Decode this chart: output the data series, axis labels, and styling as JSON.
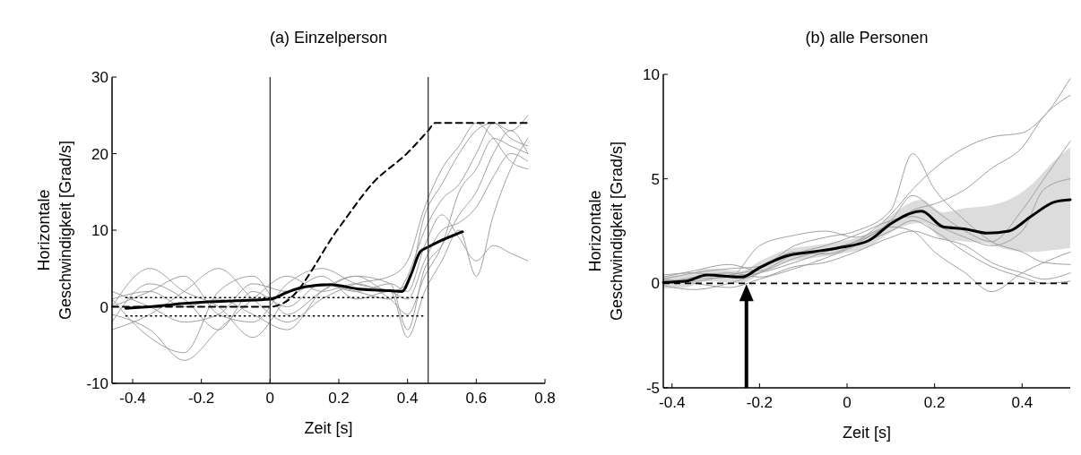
{
  "chart_data": [
    {
      "type": "line",
      "title": "(a) Einzelperson",
      "xlabel": "Zeit [s]",
      "ylabel": "Horizontale\nGeschwindigkeit [Grad/s]",
      "xlim": [
        -0.46,
        0.8
      ],
      "ylim": [
        -10,
        30
      ],
      "xticks": [
        -0.4,
        -0.2,
        0,
        0.2,
        0.4,
        0.6,
        0.8
      ],
      "yticks": [
        -10,
        0,
        10,
        20,
        30
      ],
      "ref_lines": [
        {
          "axis": "x",
          "value": 0,
          "color": "#333333",
          "line_style": "solid"
        },
        {
          "axis": "x",
          "value": 0.46,
          "color": "#333333",
          "line_style": "solid"
        }
      ],
      "series": [
        {
          "color": "#a0a0a0",
          "line_style": "solid",
          "x": [
            -0.46,
            -0.35,
            -0.25,
            -0.15,
            -0.05,
            0.05,
            0.15,
            0.25,
            0.35,
            0.4,
            0.45,
            0.5,
            0.55,
            0.6,
            0.65,
            0.7,
            0.75
          ],
          "values": [
            -2,
            3,
            1,
            -3,
            2,
            0,
            3,
            2,
            1,
            4,
            10,
            14,
            16,
            20,
            24,
            22,
            21
          ]
        },
        {
          "color": "#a0a0a0",
          "line_style": "solid",
          "x": [
            -0.46,
            -0.35,
            -0.25,
            -0.15,
            -0.05,
            0.05,
            0.15,
            0.25,
            0.35,
            0.4,
            0.45,
            0.5,
            0.55,
            0.6,
            0.65,
            0.7,
            0.75
          ],
          "values": [
            1,
            -4,
            -6,
            2,
            4,
            -1,
            2,
            4,
            3,
            -3,
            5,
            8,
            12,
            15,
            20,
            23,
            20
          ]
        },
        {
          "color": "#a0a0a0",
          "line_style": "solid",
          "x": [
            -0.46,
            -0.35,
            -0.25,
            -0.15,
            -0.05,
            0.05,
            0.15,
            0.25,
            0.35,
            0.4,
            0.45,
            0.5,
            0.55,
            0.6,
            0.65,
            0.7,
            0.75
          ],
          "values": [
            0,
            2,
            4,
            -1,
            -2,
            3,
            5,
            3,
            2,
            1,
            6,
            10,
            11,
            13,
            17,
            20,
            19
          ]
        },
        {
          "color": "#a0a0a0",
          "line_style": "solid",
          "x": [
            -0.46,
            -0.35,
            -0.25,
            -0.15,
            -0.05,
            0.05,
            0.15,
            0.25,
            0.35,
            0.4,
            0.45,
            0.5,
            0.55,
            0.6,
            0.65,
            0.7,
            0.75
          ],
          "values": [
            -3,
            -1,
            2,
            5,
            1,
            -2,
            1,
            3,
            4,
            6,
            13,
            18,
            21,
            24,
            22,
            19,
            18
          ]
        },
        {
          "color": "#a0a0a0",
          "line_style": "solid",
          "x": [
            -0.46,
            -0.35,
            -0.25,
            -0.15,
            -0.05,
            0.05,
            0.15,
            0.25,
            0.35,
            0.4,
            0.45,
            0.5,
            0.55,
            0.6,
            0.65,
            0.7,
            0.75
          ],
          "values": [
            2,
            0,
            -2,
            -1,
            3,
            2,
            4,
            1,
            2,
            -4,
            2,
            6,
            10,
            4,
            12,
            18,
            22
          ]
        },
        {
          "color": "#a0a0a0",
          "line_style": "solid",
          "x": [
            -0.46,
            -0.35,
            -0.25,
            -0.15,
            -0.05,
            0.05,
            0.15,
            0.25,
            0.35,
            0.4,
            0.45,
            0.5,
            0.55,
            0.6,
            0.65,
            0.7,
            0.75
          ],
          "values": [
            0,
            5,
            2,
            0,
            -4,
            1,
            3,
            2,
            3,
            2,
            8,
            12,
            9,
            6,
            8,
            7,
            6
          ]
        },
        {
          "color": "#a0a0a0",
          "line_style": "solid",
          "x": [
            -0.46,
            -0.35,
            -0.25,
            -0.15,
            -0.05,
            0.05,
            0.15,
            0.25,
            0.35,
            0.4,
            0.45,
            0.5,
            0.55,
            0.6,
            0.65,
            0.7,
            0.75
          ],
          "values": [
            -1,
            -3,
            -7,
            -3,
            1,
            4,
            2,
            3,
            1,
            -1,
            4,
            8,
            15,
            18,
            22,
            21,
            20
          ]
        },
        {
          "color": "#a0a0a0",
          "line_style": "solid",
          "x": [
            -0.46,
            -0.35,
            -0.25,
            -0.15,
            -0.05,
            0.05,
            0.15,
            0.25,
            0.35,
            0.4,
            0.45,
            0.5,
            0.55,
            0.6,
            0.65,
            0.7,
            0.75
          ],
          "values": [
            1,
            2,
            0,
            1,
            -1,
            -3,
            2,
            4,
            2,
            3,
            12,
            16,
            20,
            23,
            24,
            23,
            25
          ]
        },
        {
          "color": "#000000",
          "line_style": "dotted",
          "x": [
            -0.42,
            0.45
          ],
          "values": [
            1.2,
            1.2
          ]
        },
        {
          "color": "#000000",
          "line_style": "dotted",
          "x": [
            -0.42,
            0.45
          ],
          "values": [
            -1.2,
            -1.2
          ]
        },
        {
          "color": "#000000",
          "line_style": "dashed",
          "x": [
            -0.46,
            0,
            0.04,
            0.2,
            0.3,
            0.4,
            0.46,
            0.48,
            0.75
          ],
          "values": [
            0,
            0,
            0.5,
            10.3,
            16.2,
            20.1,
            23,
            24,
            24
          ]
        },
        {
          "color": "#000000",
          "line_style": "solid",
          "x": [
            -0.42,
            -0.3,
            -0.26,
            -0.1,
            0,
            0.05,
            0.1,
            0.175,
            0.26,
            0.35,
            0.384,
            0.41,
            0.437,
            0.46,
            0.5,
            0.56
          ],
          "values": [
            -0.2,
            0.2,
            0.4,
            0.8,
            1.0,
            1.9,
            2.6,
            2.9,
            2.3,
            2.1,
            2.0,
            4.2,
            7.2,
            7.8,
            8.7,
            9.8
          ]
        }
      ]
    },
    {
      "type": "line",
      "title": "(b) alle Personen",
      "xlabel": "Zeit [s]",
      "ylabel": "Horizontale\nGeschwindigkeit [Grad/s]",
      "xlim": [
        -0.42,
        0.51
      ],
      "ylim": [
        -5,
        10
      ],
      "xticks": [
        -0.4,
        -0.2,
        0,
        0.2,
        0.4
      ],
      "yticks": [
        -5,
        0,
        5,
        10
      ],
      "ref_lines": [
        {
          "axis": "y",
          "value": 0,
          "color": "#000000",
          "line_style": "dashed"
        },
        {
          "axis": "x",
          "value": -0.23,
          "color": "#000000",
          "line_style": "solid"
        }
      ],
      "series": [
        {
          "color": "#a0a0a0",
          "line_style": "solid",
          "x": [
            -0.42,
            -0.35,
            -0.27,
            -0.2,
            -0.12,
            -0.05,
            0.02,
            0.1,
            0.15,
            0.2,
            0.27,
            0.33,
            0.4,
            0.45,
            0.51
          ],
          "values": [
            0.2,
            0.5,
            0.7,
            0.8,
            1.8,
            2.2,
            2.5,
            3.5,
            6.2,
            4.5,
            3,
            2,
            1.5,
            1,
            0.9
          ]
        },
        {
          "color": "#a0a0a0",
          "line_style": "solid",
          "x": [
            -0.42,
            -0.35,
            -0.27,
            -0.2,
            -0.12,
            -0.05,
            0.02,
            0.1,
            0.15,
            0.2,
            0.27,
            0.33,
            0.4,
            0.45,
            0.51
          ],
          "values": [
            0,
            0.2,
            0.3,
            0.5,
            1,
            1.5,
            2,
            3.3,
            4.5,
            5.5,
            6.5,
            7,
            7.2,
            8,
            9.8
          ]
        },
        {
          "color": "#a0a0a0",
          "line_style": "solid",
          "x": [
            -0.42,
            -0.35,
            -0.27,
            -0.2,
            -0.12,
            -0.05,
            0.02,
            0.1,
            0.15,
            0.2,
            0.27,
            0.33,
            0.4,
            0.45,
            0.51
          ],
          "values": [
            0.3,
            0.6,
            0.9,
            0.6,
            1.2,
            1.6,
            2,
            2.8,
            3.5,
            3.8,
            4.5,
            5.5,
            6.5,
            8,
            9
          ]
        },
        {
          "color": "#a0a0a0",
          "line_style": "solid",
          "x": [
            -0.42,
            -0.35,
            -0.27,
            -0.2,
            -0.12,
            -0.05,
            0.02,
            0.1,
            0.15,
            0.2,
            0.27,
            0.33,
            0.4,
            0.45,
            0.51
          ],
          "values": [
            0.1,
            0,
            -0.2,
            0.2,
            0.7,
            1.2,
            1.8,
            2.5,
            3,
            2.5,
            1.5,
            0.8,
            0.3,
            0,
            0.1
          ]
        },
        {
          "color": "#a0a0a0",
          "line_style": "solid",
          "x": [
            -0.42,
            -0.35,
            -0.27,
            -0.2,
            -0.12,
            -0.05,
            0.02,
            0.1,
            0.15,
            0.2,
            0.27,
            0.33,
            0.4,
            0.45,
            0.51
          ],
          "values": [
            -0.1,
            -0.3,
            0,
            0.5,
            1.4,
            1.8,
            2.3,
            3,
            3.2,
            2.8,
            2.2,
            1.8,
            2.5,
            4.5,
            5
          ]
        },
        {
          "color": "#a0a0a0",
          "line_style": "solid",
          "x": [
            -0.42,
            -0.35,
            -0.27,
            -0.2,
            -0.12,
            -0.05,
            0.02,
            0.1,
            0.15,
            0.2,
            0.27,
            0.33,
            0.4,
            0.45,
            0.51
          ],
          "values": [
            0.4,
            0.5,
            0.3,
            1.8,
            2.3,
            2.5,
            2.2,
            2.7,
            2.5,
            1.5,
            0.5,
            -0.4,
            0.5,
            1,
            1.5
          ]
        },
        {
          "color": "#a0a0a0",
          "line_style": "solid",
          "x": [
            -0.42,
            -0.35,
            -0.27,
            -0.2,
            -0.12,
            -0.05,
            0.02,
            0.1,
            0.15,
            0.2,
            0.27,
            0.33,
            0.4,
            0.45,
            0.51
          ],
          "values": [
            0.2,
            0.1,
            0.4,
            0.7,
            1.5,
            1.4,
            1.9,
            3,
            4.2,
            3.5,
            2.5,
            2,
            3.5,
            5,
            6.8
          ]
        },
        {
          "color": "#a0a0a0",
          "line_style": "solid",
          "x": [
            -0.42,
            -0.35,
            -0.27,
            -0.2,
            -0.12,
            -0.05,
            0.02,
            0.1,
            0.15,
            0.2,
            0.27,
            0.33,
            0.4,
            0.45,
            0.51
          ],
          "values": [
            0,
            0.3,
            0.5,
            0.3,
            0.8,
            1,
            1.5,
            2.2,
            2.5,
            2.2,
            1.8,
            1,
            0.5,
            0.2,
            0.5
          ]
        },
        {
          "color": "#000000",
          "line_style": "solid",
          "x": [
            -0.42,
            -0.37,
            -0.32,
            -0.24,
            -0.2,
            -0.14,
            -0.08,
            -0.02,
            0.05,
            0.1,
            0.17,
            0.22,
            0.27,
            0.32,
            0.37,
            0.42,
            0.475,
            0.51
          ],
          "values": [
            0.05,
            0.1,
            0.4,
            0.3,
            0.75,
            1.3,
            1.5,
            1.7,
            2.05,
            2.85,
            3.45,
            2.7,
            2.6,
            2.4,
            2.5,
            3.2,
            3.9,
            4.0
          ],
          "lower": [
            -0.25,
            -0.2,
            0.1,
            0.0,
            0.45,
            1.0,
            1.2,
            1.4,
            1.75,
            2.45,
            2.9,
            2.1,
            2.0,
            1.9,
            1.6,
            1.5,
            1.6,
            1.7
          ],
          "upper": [
            0.35,
            0.4,
            0.7,
            0.6,
            1.05,
            1.6,
            1.8,
            2.0,
            2.35,
            3.25,
            4.0,
            3.4,
            3.6,
            3.7,
            4.0,
            4.7,
            5.9,
            6.5
          ]
        }
      ]
    }
  ]
}
